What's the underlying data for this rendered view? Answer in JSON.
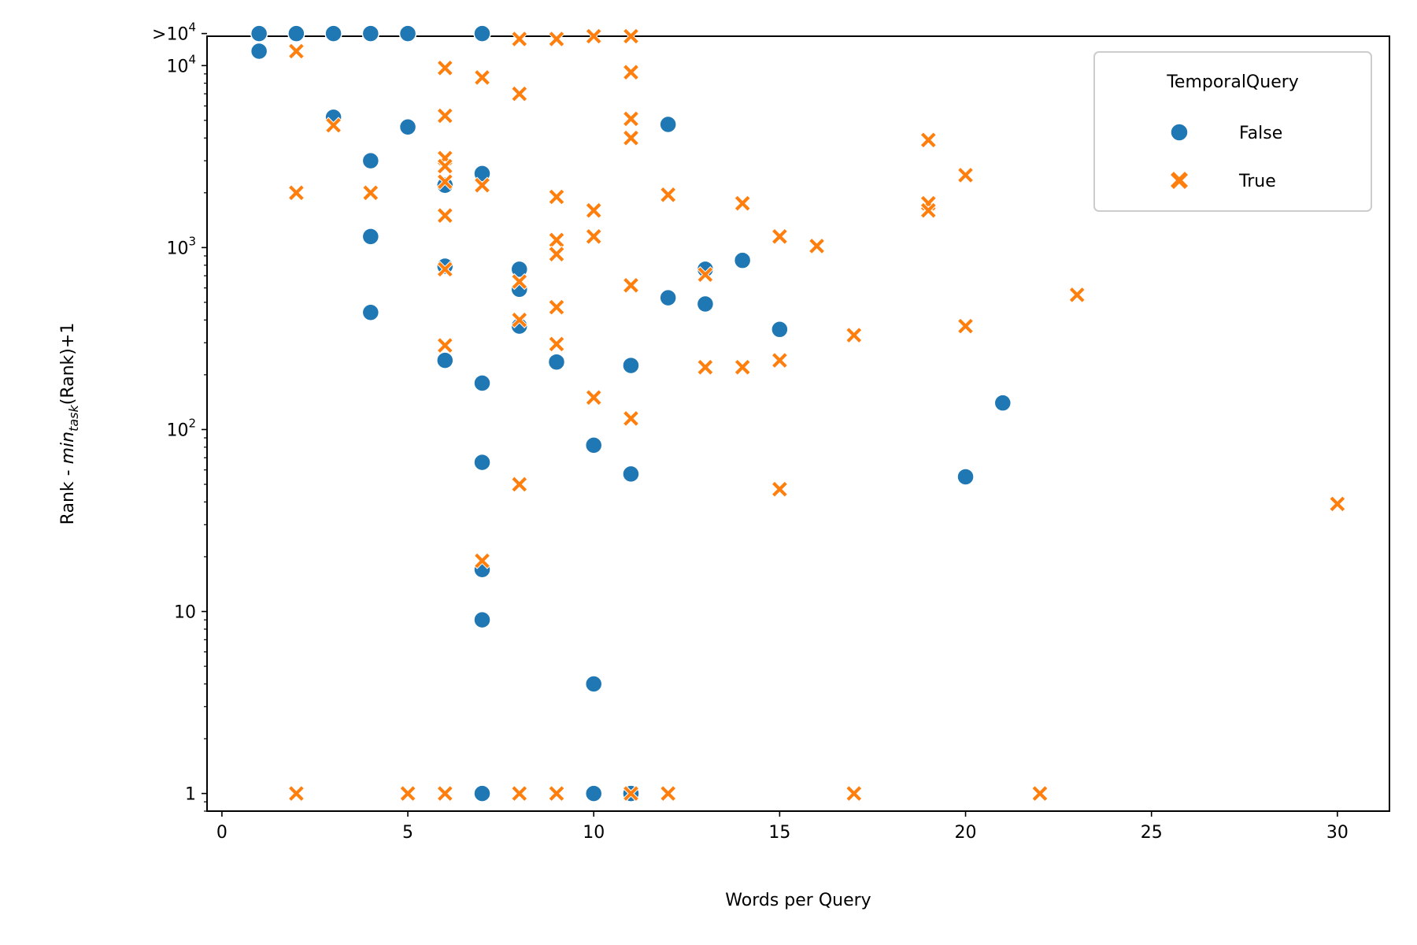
{
  "chart_data": {
    "type": "scatter",
    "xlabel": "Words per Query",
    "ylabel_parts": [
      "Rank - ",
      "min",
      "task",
      "(Rank)+1"
    ],
    "x_ticks": [
      0,
      5,
      10,
      15,
      20,
      25,
      30
    ],
    "x_tick_labels": [
      "0",
      "5",
      "10",
      "15",
      "20",
      "25",
      "30"
    ],
    "xlim": [
      -0.4,
      31.4
    ],
    "y_scale": "log",
    "ylim": [
      0.8,
      14500
    ],
    "y_ticks": [
      1,
      10,
      100,
      1000,
      10000,
      15000
    ],
    "y_tick_labels": [
      {
        "base": "1",
        "exp": ""
      },
      {
        "base": "10",
        "exp": ""
      },
      {
        "base": "10",
        "exp": "2"
      },
      {
        "base": "10",
        "exp": "3"
      },
      {
        "base": "10",
        "exp": "4"
      },
      {
        "base": ">10",
        "exp": "4"
      }
    ],
    "legend": {
      "title": "TemporalQuery",
      "position": "top-right"
    },
    "series": [
      {
        "name": "False",
        "marker": "circle",
        "color": "#1f77b4",
        "points": [
          [
            1,
            15000
          ],
          [
            1,
            12000
          ],
          [
            2,
            15000
          ],
          [
            3,
            15000
          ],
          [
            4,
            15000
          ],
          [
            5,
            15000
          ],
          [
            7,
            15000
          ],
          [
            3,
            5200
          ],
          [
            4,
            3000
          ],
          [
            4,
            1150
          ],
          [
            4,
            440
          ],
          [
            5,
            4600
          ],
          [
            6,
            2200
          ],
          [
            6,
            790
          ],
          [
            6,
            240
          ],
          [
            7,
            2550
          ],
          [
            7,
            180
          ],
          [
            7,
            66
          ],
          [
            7,
            17
          ],
          [
            7,
            9
          ],
          [
            8,
            760
          ],
          [
            8,
            590
          ],
          [
            8,
            370
          ],
          [
            9,
            235
          ],
          [
            10,
            82
          ],
          [
            10,
            4
          ],
          [
            10,
            1
          ],
          [
            11,
            225
          ],
          [
            11,
            57
          ],
          [
            11,
            1
          ],
          [
            7,
            1
          ],
          [
            12,
            4750
          ],
          [
            12,
            530
          ],
          [
            13,
            760
          ],
          [
            13,
            490
          ],
          [
            14,
            850
          ],
          [
            15,
            355
          ],
          [
            20,
            55
          ],
          [
            21,
            140
          ]
        ]
      },
      {
        "name": "True",
        "marker": "x",
        "color": "#ff7f0e",
        "points": [
          [
            2,
            12000
          ],
          [
            8,
            14000
          ],
          [
            9,
            14000
          ],
          [
            10,
            14500
          ],
          [
            11,
            14500
          ],
          [
            2,
            2000
          ],
          [
            3,
            4700
          ],
          [
            4,
            2000
          ],
          [
            6,
            9700
          ],
          [
            6,
            5300
          ],
          [
            6,
            3100
          ],
          [
            6,
            2800
          ],
          [
            6,
            2300
          ],
          [
            6,
            1500
          ],
          [
            6,
            760
          ],
          [
            6,
            290
          ],
          [
            7,
            8600
          ],
          [
            7,
            2200
          ],
          [
            7,
            19
          ],
          [
            8,
            7000
          ],
          [
            8,
            650
          ],
          [
            8,
            400
          ],
          [
            8,
            50
          ],
          [
            9,
            1900
          ],
          [
            9,
            1100
          ],
          [
            9,
            920
          ],
          [
            9,
            470
          ],
          [
            9,
            295
          ],
          [
            10,
            1600
          ],
          [
            10,
            1150
          ],
          [
            10,
            150
          ],
          [
            11,
            9200
          ],
          [
            11,
            5100
          ],
          [
            11,
            4000
          ],
          [
            11,
            620
          ],
          [
            11,
            115
          ],
          [
            12,
            1950
          ],
          [
            13,
            710
          ],
          [
            13,
            220
          ],
          [
            14,
            1750
          ],
          [
            14,
            220
          ],
          [
            15,
            1150
          ],
          [
            15,
            240
          ],
          [
            15,
            47
          ],
          [
            16,
            1020
          ],
          [
            17,
            330
          ],
          [
            19,
            3900
          ],
          [
            19,
            1750
          ],
          [
            19,
            1600
          ],
          [
            20,
            2500
          ],
          [
            20,
            370
          ],
          [
            23,
            550
          ],
          [
            30,
            39
          ],
          [
            2,
            1
          ],
          [
            5,
            1
          ],
          [
            6,
            1
          ],
          [
            8,
            1
          ],
          [
            9,
            1
          ],
          [
            11,
            1
          ],
          [
            12,
            1
          ],
          [
            17,
            1
          ],
          [
            22,
            1
          ]
        ]
      }
    ]
  }
}
